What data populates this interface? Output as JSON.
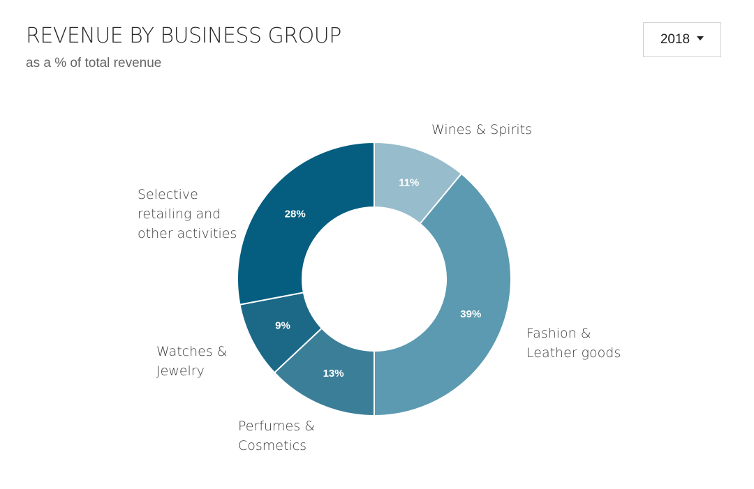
{
  "header": {
    "title": "REVENUE BY BUSINESS GROUP",
    "subtitle": "as a % of total revenue"
  },
  "year_selector": {
    "selected": "2018",
    "icon": "caret-down-icon"
  },
  "chart_data": {
    "type": "pie",
    "donut": true,
    "title": "REVENUE BY BUSINESS GROUP",
    "subtitle": "as a % of total revenue",
    "unit": "%",
    "categories": [
      "Wines & Spirits",
      "Fashion & Leather goods",
      "Perfumes & Cosmetics",
      "Watches & Jewelry",
      "Selective retailing and other activities"
    ],
    "values": [
      11,
      39,
      13,
      9,
      28
    ],
    "value_labels": [
      "11%",
      "39%",
      "13%",
      "9%",
      "28%"
    ],
    "category_label_lines": [
      [
        "Wines & Spirits"
      ],
      [
        "Fashion &",
        "Leather goods"
      ],
      [
        "Perfumes &",
        "Cosmetics"
      ],
      [
        "Watches &",
        "Jewelry"
      ],
      [
        "Selective",
        "retailing and",
        "other activities"
      ]
    ],
    "colors": [
      "#97bccb",
      "#5b9ab0",
      "#3b7e98",
      "#1c6887",
      "#055e80"
    ]
  }
}
